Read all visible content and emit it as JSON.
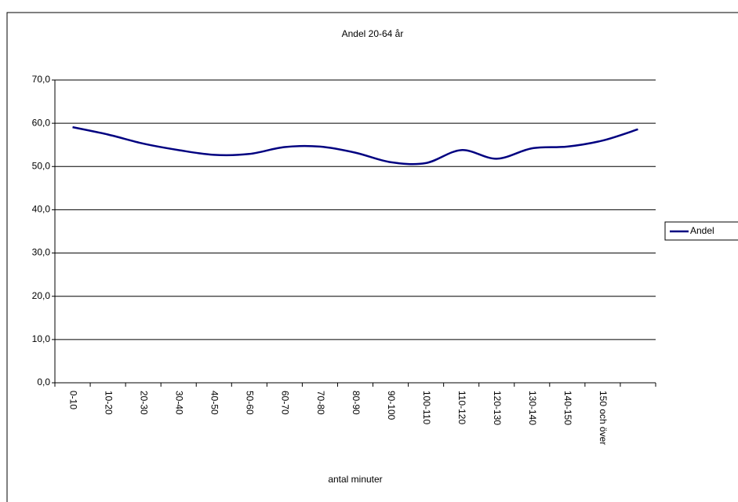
{
  "chart_data": {
    "type": "line",
    "title": "Andel 20-64 år",
    "x_label": "antal minuter",
    "categories": [
      "0-10",
      "10-20",
      "20-30",
      "30-40",
      "40-50",
      "50-60",
      "60-70",
      "70-80",
      "80-90",
      "90-100",
      "100-110",
      "110-120",
      "120-130",
      "130-140",
      "140-150",
      "150 och över",
      null
    ],
    "series": [
      {
        "name": "Andel",
        "color": "#000080",
        "values": [
          59.1,
          57.4,
          55.3,
          53.8,
          52.7,
          52.9,
          54.5,
          54.6,
          53.2,
          51.0,
          50.8,
          53.8,
          51.8,
          54.2,
          54.6,
          56.0,
          58.6
        ]
      }
    ],
    "ylim": [
      0,
      70
    ],
    "yticks": [
      {
        "value": 0,
        "label": "0,0"
      },
      {
        "value": 10,
        "label": "10,0"
      },
      {
        "value": 20,
        "label": "20,0"
      },
      {
        "value": 30,
        "label": "30,0"
      },
      {
        "value": 40,
        "label": "40,0"
      },
      {
        "value": 50,
        "label": "50,0"
      },
      {
        "value": 60,
        "label": "60,0"
      },
      {
        "value": 70,
        "label": "70,0"
      }
    ],
    "grid": true,
    "legend": "right"
  }
}
